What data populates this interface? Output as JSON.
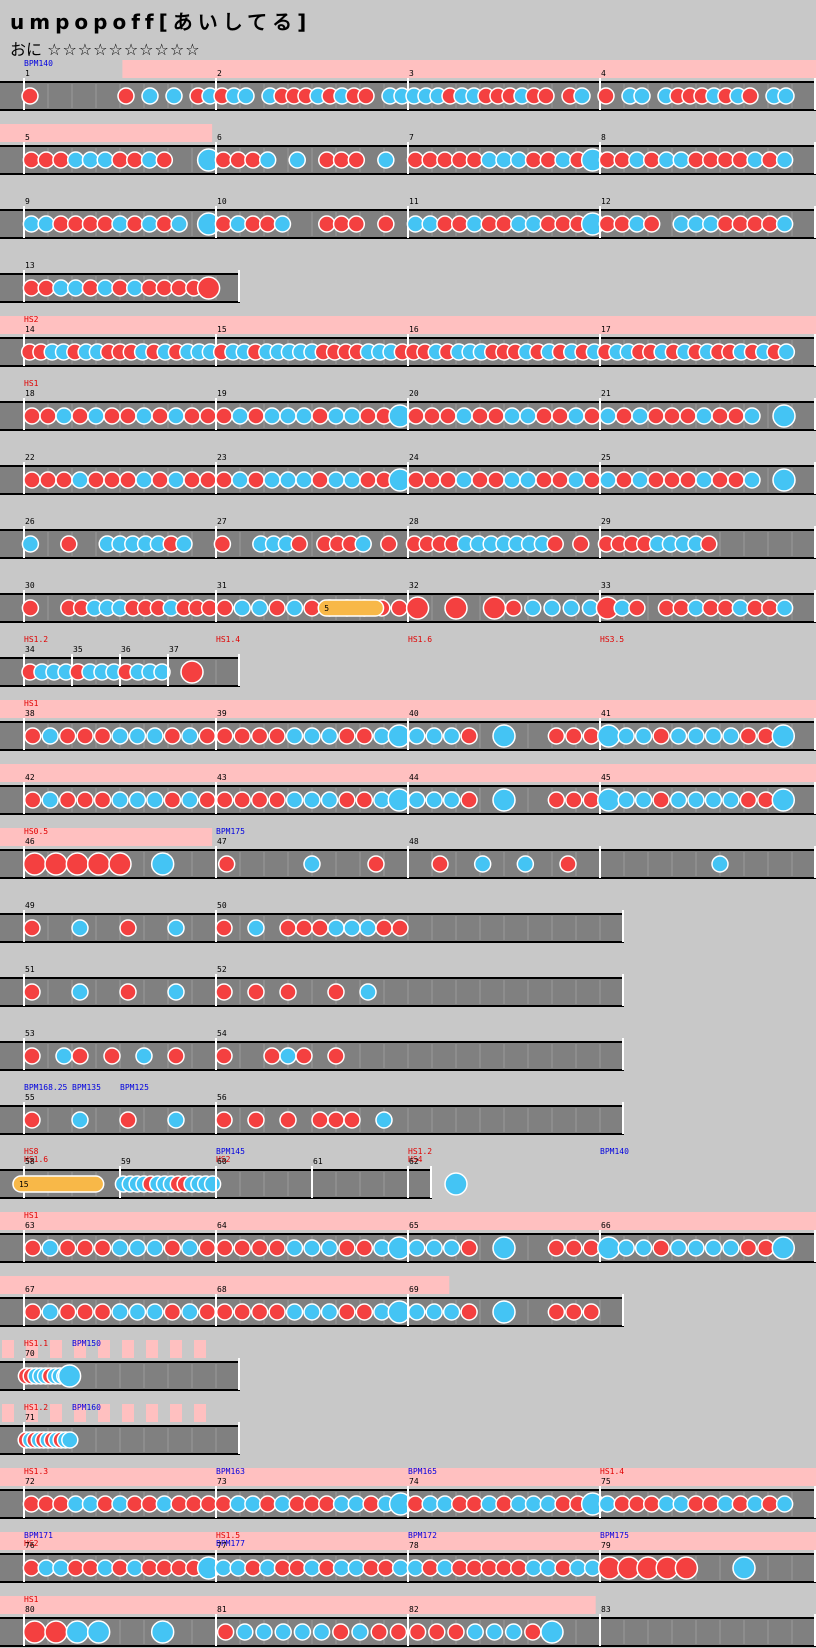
{
  "song": {
    "title": "umpopoff[あいしてる]",
    "difficulty_label": "おに",
    "stars": "☆☆☆☆☆☆☆☆☆☆"
  },
  "colors": {
    "background": "#c8c8c8",
    "lane": "#808080",
    "lane_border": "#ffffff",
    "gogo_band": "#ffc0c0",
    "don": "#f44040",
    "ka": "#44c4f4",
    "roll": "#f8b848",
    "bar_number": "#000000",
    "scroll_label": "#e00000",
    "bpm_label": "#0000e0"
  },
  "rows": [
    {
      "bars": [
        {
          "n": "1",
          "notes": "1000000010202012"
        },
        {
          "n": "2",
          "notes": "1220211121211022"
        },
        {
          "n": "3",
          "notes": "2221221112110120"
        },
        {
          "n": "4",
          "notes": "1022021112121022"
        }
      ],
      "labels": [
        {
          "t": "BPM140",
          "c": "bpm"
        }
      ],
      "gogo": [
        [
          0.15,
          1
        ]
      ]
    },
    {
      "bars": [
        {
          "n": "5",
          "notes": "1112221121004"
        },
        {
          "n": "6",
          "notes": "1112020111020"
        },
        {
          "n": "7",
          "notes": "1111122211214"
        },
        {
          "n": "8",
          "notes": "1121221111212"
        }
      ],
      "gogo": [
        [
          0,
          0.26
        ]
      ]
    },
    {
      "bars": [
        {
          "n": "9",
          "notes": "2211112121204"
        },
        {
          "n": "10",
          "notes": "1211200111010"
        },
        {
          "n": "11",
          "notes": "2211211221114"
        },
        {
          "n": "12",
          "notes": "1121022211112"
        }
      ]
    },
    {
      "bars": [
        {
          "n": "13",
          "notes": "1122121211113"
        }
      ]
    },
    {
      "bars": [
        {
          "n": "14",
          "notes": "11221221112121222"
        },
        {
          "n": "15",
          "notes": "12212222211112221"
        },
        {
          "n": "16",
          "notes": "11212221112121212"
        },
        {
          "n": "17",
          "notes": "12211212121121212"
        }
      ],
      "labels": [
        {
          "t": "HS2",
          "c": "hs"
        }
      ],
      "gogo": [
        [
          0,
          1
        ]
      ]
    },
    {
      "bars": [
        {
          "n": "18",
          "notes": "112121121211"
        },
        {
          "n": "19",
          "notes": "121222122114"
        },
        {
          "n": "20",
          "notes": "111211221121"
        },
        {
          "n": "21",
          "notes": "212111211204"
        }
      ],
      "labels": [
        {
          "t": "HS1",
          "c": "hs"
        }
      ]
    },
    {
      "bars": [
        {
          "n": "22",
          "notes": "111211121211"
        },
        {
          "n": "23",
          "notes": "121222122114"
        },
        {
          "n": "24",
          "notes": "111211221121"
        },
        {
          "n": "25",
          "notes": "212111211204"
        }
      ]
    },
    {
      "bars": [
        {
          "n": "26",
          "notes": "200100222221200"
        },
        {
          "n": "27",
          "notes": "100222101112010"
        },
        {
          "n": "28",
          "notes": "111122222221010"
        },
        {
          "n": "29",
          "notes": "111122221000000"
        }
      ]
    },
    {
      "bars": [
        {
          "n": "30",
          "notes": "100112221112111"
        },
        {
          "n": "31",
          "notes": "12212112111"
        },
        {
          "n": "32",
          "notes": "3030312222"
        },
        {
          "n": "33",
          "notes": "3210112112112"
        }
      ],
      "labels": [],
      "rolls": [
        {
          "start": 0.39,
          "end": 0.47,
          "text": "5"
        }
      ]
    },
    {
      "bars": [
        {
          "n": "34",
          "notes": "1222"
        },
        {
          "n": "35",
          "notes": "1222"
        },
        {
          "n": "36",
          "notes": "1222"
        },
        {
          "n": "37",
          "notes": "3"
        }
      ],
      "labels": [
        {
          "t": "HS1.2",
          "c": "hs"
        },
        {
          "t": "HS1.4",
          "c": "hs"
        },
        {
          "t": "HS1.6",
          "c": "hs"
        },
        {
          "t": "HS3.5",
          "c": "hs"
        }
      ],
      "narrow": true
    },
    {
      "bars": [
        {
          "n": "38",
          "notes": "12111222121"
        },
        {
          "n": "39",
          "notes": "11112221124"
        },
        {
          "n": "40",
          "notes": "22210400111"
        },
        {
          "n": "41",
          "notes": "42212222114"
        }
      ],
      "labels": [
        {
          "t": "HS1",
          "c": "hs"
        }
      ],
      "gogo": [
        [
          0,
          1
        ]
      ]
    },
    {
      "bars": [
        {
          "n": "42",
          "notes": "12111222121"
        },
        {
          "n": "43",
          "notes": "11112221124"
        },
        {
          "n": "44",
          "notes": "22210400111"
        },
        {
          "n": "45",
          "notes": "42212222114"
        }
      ],
      "gogo": [
        [
          0,
          1
        ]
      ]
    },
    {
      "bars": [
        {
          "n": "46",
          "notes": "333330400"
        },
        {
          "n": "47",
          "notes": "100020010"
        },
        {
          "n": "48",
          "notes": "010202010"
        },
        {
          "n": "",
          "notes": "0020"
        }
      ],
      "labels": [
        {
          "t": "HS0.5",
          "c": "hs"
        },
        {
          "t": "BPM175",
          "c": "bpm"
        }
      ],
      "gogo": [
        [
          0,
          0.26
        ]
      ]
    },
    {
      "bars": [
        {
          "n": "49",
          "notes": "100200100200"
        },
        {
          "n": "50",
          "notes": "102011122211"
        }
      ],
      "half": true
    },
    {
      "bars": [
        {
          "n": "51",
          "notes": "100200100200"
        },
        {
          "n": "52",
          "notes": "101010010200"
        }
      ],
      "half": true
    },
    {
      "bars": [
        {
          "n": "53",
          "notes": "102101020100"
        },
        {
          "n": "54",
          "notes": "100121010000"
        }
      ],
      "half": true
    },
    {
      "bars": [
        {
          "n": "55",
          "notes": "100200100200"
        },
        {
          "n": "56",
          "notes": "101010111020"
        }
      ],
      "labels": [
        {
          "t": "BPM168.25",
          "c": "bpm"
        },
        {
          "t": "BPM135",
          "c": "bpm"
        },
        {
          "t": "BPM125",
          "c": "bpm"
        }
      ],
      "half": true
    },
    {
      "bars": [
        {
          "n": "58",
          "notes": ""
        },
        {
          "n": "59",
          "notes": "22221222112222"
        },
        {
          "n": "60",
          "notes": ""
        },
        {
          "n": "61",
          "notes": ""
        },
        {
          "n": "62",
          "notes": "4"
        }
      ],
      "labels": [
        {
          "t": "HS8",
          "c": "hs"
        },
        {
          "t": "BPM145",
          "c": "bpm"
        },
        {
          "t": "HS1.2",
          "c": "hs"
        },
        {
          "t": "BPM140",
          "c": "bpm"
        },
        {
          "t": "HS1.6",
          "c": "hs"
        },
        {
          "t": "HS2",
          "c": "hs"
        },
        {
          "t": "HS4",
          "c": "hs"
        }
      ],
      "rolls": [
        {
          "start": 0.03,
          "end": 0.24,
          "text": "15"
        }
      ],
      "mid": true
    },
    {
      "bars": [
        {
          "n": "63",
          "notes": "12111222121"
        },
        {
          "n": "64",
          "notes": "11112221124"
        },
        {
          "n": "65",
          "notes": "22210400111"
        },
        {
          "n": "66",
          "notes": "42212222114"
        }
      ],
      "labels": [
        {
          "t": "HS1",
          "c": "hs"
        }
      ],
      "gogo": [
        [
          0,
          1
        ]
      ]
    },
    {
      "bars": [
        {
          "n": "67",
          "notes": "12111222121"
        },
        {
          "n": "68",
          "notes": "11112221124"
        },
        {
          "n": "69",
          "notes": "22210400111"
        }
      ],
      "gogo": [
        [
          0,
          0.72
        ]
      ],
      "wide3": true
    },
    {
      "bars": [
        {
          "n": "70",
          "notes": "1122212224"
        }
      ],
      "labels": [
        {
          "t": "HS1.1",
          "c": "hs"
        },
        {
          "t": "BPM150",
          "c": "bpm"
        }
      ],
      "narrow": true,
      "stripes": true
    },
    {
      "bars": [
        {
          "n": "71",
          "notes": "12121212122"
        }
      ],
      "labels": [
        {
          "t": "HS1.2",
          "c": "hs"
        },
        {
          "t": "BPM160",
          "c": "bpm"
        }
      ],
      "narrow": true,
      "stripes": true
    },
    {
      "bars": [
        {
          "n": "72",
          "notes": "1112212112111"
        },
        {
          "n": "73",
          "notes": "1221211122124"
        },
        {
          "n": "74",
          "notes": "1221121222114"
        },
        {
          "n": "75",
          "notes": "2111221121212"
        }
      ],
      "labels": [
        {
          "t": "HS1.3",
          "c": "hs"
        },
        {
          "t": "BPM163",
          "c": "bpm"
        },
        {
          "t": "BPM165",
          "c": "bpm"
        },
        {
          "t": "HS1.4",
          "c": "hs"
        }
      ],
      "gogo": [
        [
          0,
          1
        ]
      ]
    },
    {
      "bars": [
        {
          "n": "76",
          "notes": "1221121211114"
        },
        {
          "n": "77",
          "notes": "2212112122112"
        },
        {
          "n": "78",
          "notes": "2121111122122"
        },
        {
          "n": "79",
          "notes": "3333300400"
        }
      ],
      "labels": [
        {
          "t": "BPM171",
          "c": "bpm"
        },
        {
          "t": "HS1.5",
          "c": "hs"
        },
        {
          "t": "BPM172",
          "c": "bpm"
        },
        {
          "t": "BPM175",
          "c": "bpm"
        },
        {
          "t": "HS2",
          "c": "hs"
        },
        {
          "t": "BPM177",
          "c": "bpm"
        }
      ],
      "gogo": [
        [
          0,
          1
        ]
      ]
    },
    {
      "bars": [
        {
          "n": "80",
          "notes": "334400400"
        },
        {
          "n": "81",
          "notes": "1222221211"
        },
        {
          "n": "82",
          "notes": "1112221400"
        },
        {
          "n": "83",
          "notes": ""
        }
      ],
      "labels": [
        {
          "t": "HS1",
          "c": "hs"
        }
      ],
      "gogo": [
        [
          0,
          0.73
        ]
      ]
    }
  ]
}
